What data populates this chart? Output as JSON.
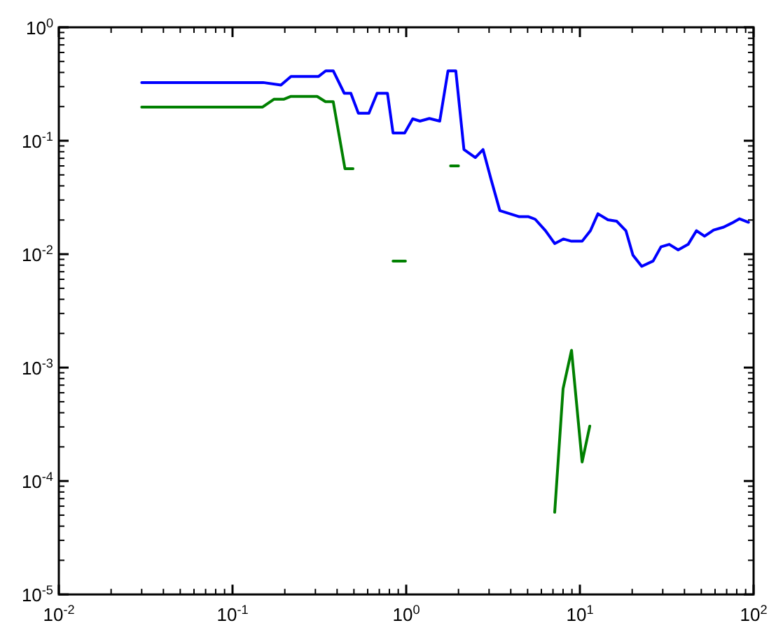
{
  "chart_data": {
    "type": "line",
    "log": "xy",
    "grid": false,
    "marker": "none",
    "line_style": "solid",
    "xlim": [
      0.01,
      100
    ],
    "ylim": [
      1e-05,
      1
    ],
    "xticks": [
      {
        "value": 0.01,
        "label": "10$^{-2}$"
      },
      {
        "value": 0.1,
        "label": "10$^{-1}$"
      },
      {
        "value": 1,
        "label": "10$^{0}$"
      },
      {
        "value": 10,
        "label": "10$^{1}$"
      },
      {
        "value": 100,
        "label": "10$^{2}$"
      }
    ],
    "yticks": [
      {
        "value": 1e-05,
        "label": "10$^{-5}$"
      },
      {
        "value": 0.0001,
        "label": "10$^{-4}$"
      },
      {
        "value": 0.001,
        "label": "10$^{-3}$"
      },
      {
        "value": 0.01,
        "label": "10$^{-2}$"
      },
      {
        "value": 0.1,
        "label": "10$^{-1}$"
      },
      {
        "value": 1,
        "label": "10$^{0}$"
      }
    ],
    "series": [
      {
        "color": "#0000ff",
        "x": [
          0.03,
          0.15,
          0.19,
          0.217,
          0.313,
          0.344,
          0.38,
          0.44,
          0.48,
          0.53,
          0.61,
          0.68,
          0.78,
          0.84,
          0.98,
          1.09,
          1.2,
          1.36,
          1.56,
          1.74,
          1.93,
          2.15,
          2.5,
          2.77,
          3.08,
          3.46,
          4.48,
          5.06,
          5.53,
          6.34,
          7.16,
          8.03,
          8.95,
          10.3,
          11.5,
          12.7,
          14.5,
          16.3,
          18.4,
          20.2,
          22.7,
          26.4,
          29.3,
          32.7,
          36.8,
          42,
          46.9,
          52.2,
          58.9,
          67.2,
          75,
          83,
          93.5
        ],
        "values": [
          0.326,
          0.326,
          0.31,
          0.369,
          0.369,
          0.413,
          0.413,
          0.262,
          0.262,
          0.175,
          0.175,
          0.262,
          0.262,
          0.117,
          0.117,
          0.156,
          0.149,
          0.157,
          0.149,
          0.413,
          0.413,
          0.0836,
          0.0711,
          0.0836,
          0.0457,
          0.0242,
          0.0214,
          0.0214,
          0.0203,
          0.0161,
          0.0124,
          0.0136,
          0.013,
          0.013,
          0.0161,
          0.0227,
          0.0201,
          0.0195,
          0.0161,
          0.0098,
          0.0078,
          0.0087,
          0.0116,
          0.0122,
          0.0109,
          0.0122,
          0.0161,
          0.0144,
          0.0163,
          0.0173,
          0.0188,
          0.0205,
          0.0191
        ]
      },
      {
        "color": "#008000",
        "x": [
          0.03,
          0.149,
          0.173,
          0.197,
          0.217,
          0.307,
          0.343,
          0.38,
          0.444,
          0.494,
          0.6,
          0.84,
          0.99,
          1.2,
          1.8,
          2.0,
          3,
          7.16,
          8.0,
          8.95,
          10.3,
          11.4
        ],
        "values": [
          0.198,
          0.198,
          0.232,
          0.232,
          0.246,
          0.246,
          0.221,
          0.221,
          0.0567,
          0.0567,
          null,
          0.0087,
          0.0087,
          null,
          0.06,
          0.06,
          null,
          5.3e-05,
          0.00065,
          0.00142,
          0.000147,
          0.000305
        ]
      }
    ]
  }
}
